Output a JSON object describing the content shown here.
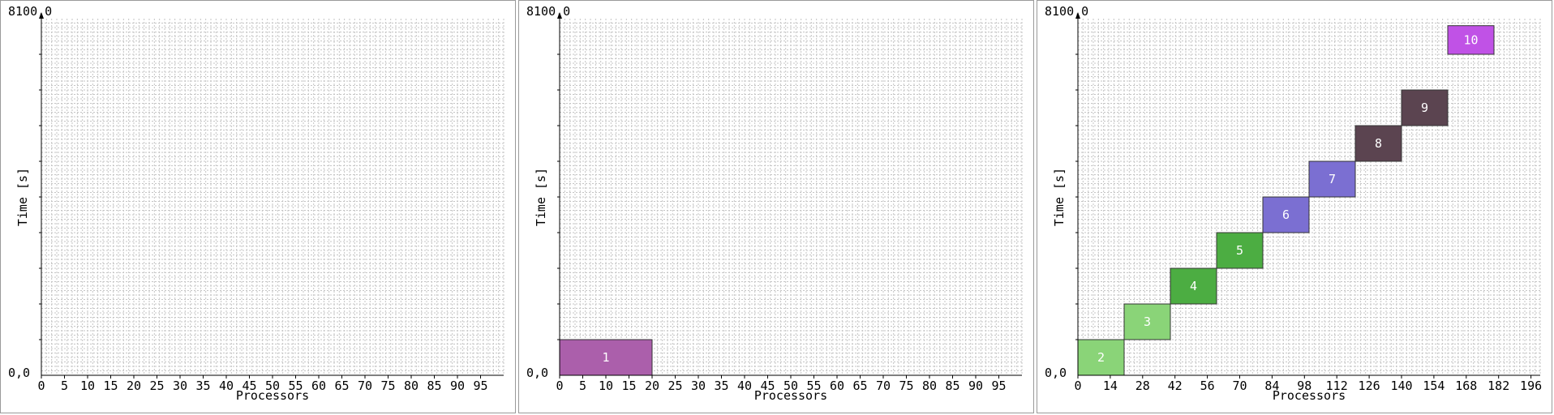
{
  "chart_data": [
    {
      "type": "gantt",
      "xlabel": "Processors",
      "ylabel": "Time [s]",
      "y_top_label": "8100,0",
      "y_bottom_label": "0,0",
      "xticks": [
        0,
        5,
        10,
        15,
        20,
        25,
        30,
        35,
        40,
        45,
        50,
        55,
        60,
        65,
        70,
        75,
        80,
        85,
        90,
        95
      ],
      "xlim": [
        0,
        100
      ],
      "ylim": [
        0,
        8100
      ],
      "grid": true,
      "jobs": []
    },
    {
      "type": "gantt",
      "xlabel": "Processors",
      "ylabel": "Time [s]",
      "y_top_label": "8100,0",
      "y_bottom_label": "0,0",
      "xticks": [
        0,
        5,
        10,
        15,
        20,
        25,
        30,
        35,
        40,
        45,
        50,
        55,
        60,
        65,
        70,
        75,
        80,
        85,
        90,
        95
      ],
      "xlim": [
        0,
        100
      ],
      "ylim": [
        0,
        8100
      ],
      "grid": true,
      "jobs": [
        {
          "label": "1",
          "x0": 0,
          "x1": 20,
          "t0": 0,
          "t1": 810,
          "color": "#ab5fab"
        }
      ]
    },
    {
      "type": "gantt",
      "xlabel": "Processors",
      "ylabel": "Time [s]",
      "y_top_label": "8100,0",
      "y_bottom_label": "0,0",
      "xticks": [
        0,
        14,
        28,
        42,
        56,
        70,
        84,
        98,
        112,
        126,
        140,
        154,
        168,
        182,
        196
      ],
      "xlim": [
        0,
        200
      ],
      "ylim": [
        0,
        8100
      ],
      "grid": true,
      "jobs": [
        {
          "label": "2",
          "x0": 0,
          "x1": 20,
          "t0": 0,
          "t1": 810,
          "color": "#8ad478"
        },
        {
          "label": "3",
          "x0": 20,
          "x1": 40,
          "t0": 810,
          "t1": 1620,
          "color": "#8ad478"
        },
        {
          "label": "4",
          "x0": 40,
          "x1": 60,
          "t0": 1620,
          "t1": 2430,
          "color": "#4cad42"
        },
        {
          "label": "5",
          "x0": 60,
          "x1": 80,
          "t0": 2430,
          "t1": 3240,
          "color": "#4cad42"
        },
        {
          "label": "6",
          "x0": 80,
          "x1": 100,
          "t0": 3240,
          "t1": 4050,
          "color": "#7b6fd2"
        },
        {
          "label": "7",
          "x0": 100,
          "x1": 120,
          "t0": 4050,
          "t1": 4860,
          "color": "#7b6fd2"
        },
        {
          "label": "8",
          "x0": 120,
          "x1": 140,
          "t0": 4860,
          "t1": 5670,
          "color": "#5b4450"
        },
        {
          "label": "9",
          "x0": 140,
          "x1": 160,
          "t0": 5670,
          "t1": 6480,
          "color": "#5b4450"
        },
        {
          "label": "10",
          "x0": 160,
          "x1": 180,
          "t0": 7290,
          "t1": 7940,
          "color": "#c052e6"
        }
      ]
    }
  ]
}
